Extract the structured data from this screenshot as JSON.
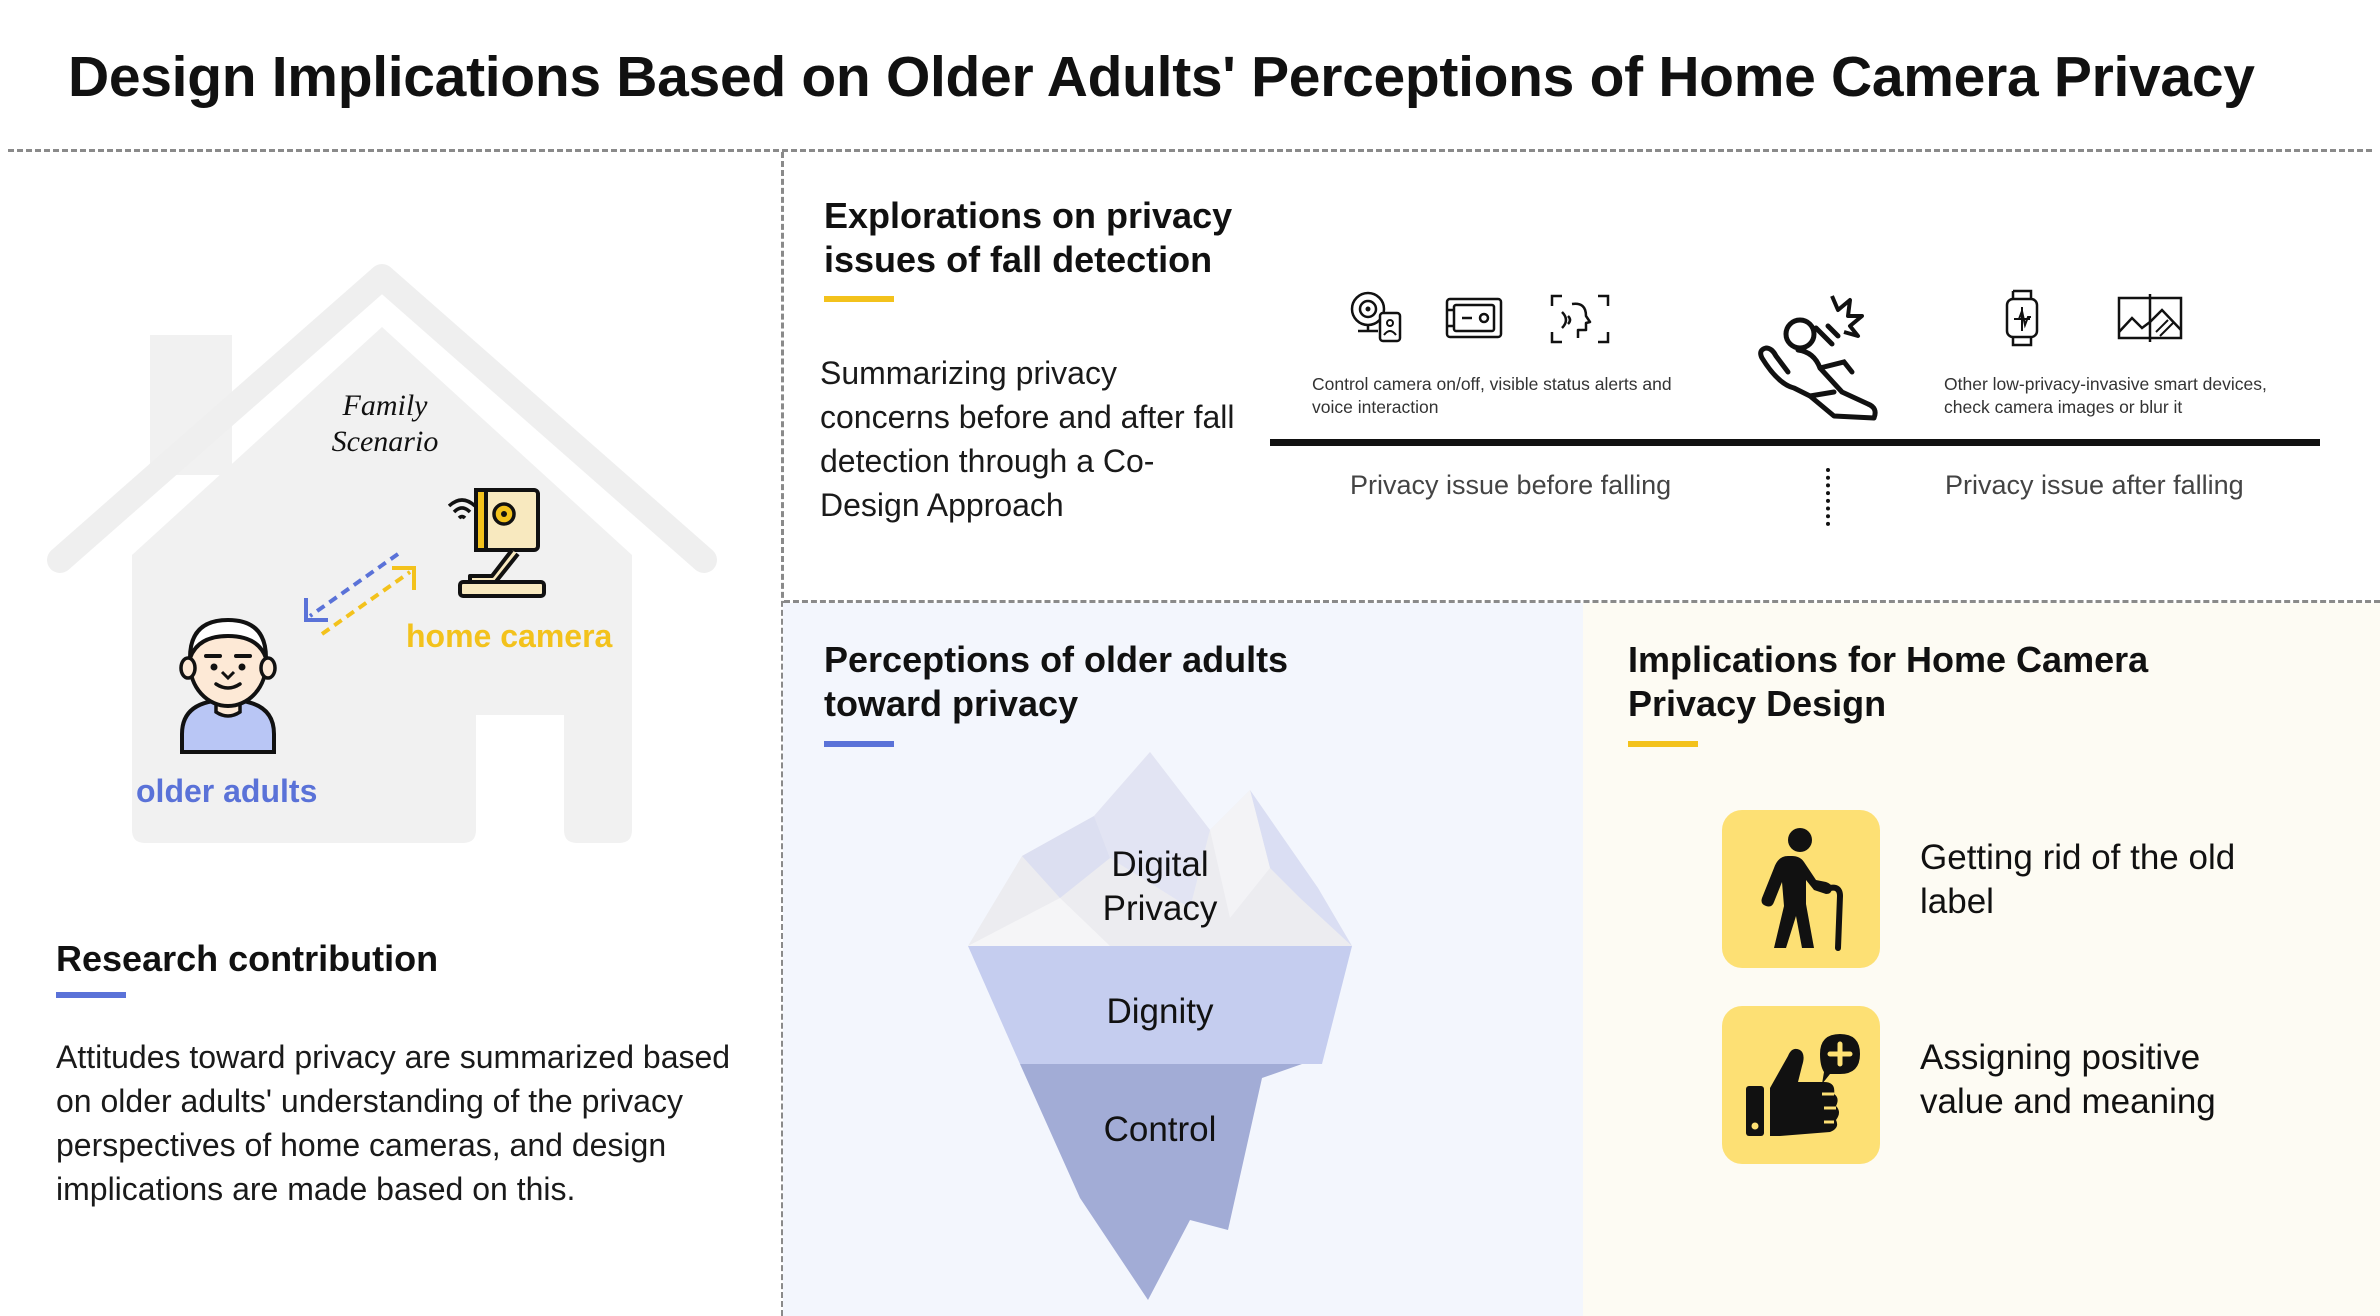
{
  "title": "Design Implications Based on Older Adults' Perceptions of Home Camera Privacy",
  "colors": {
    "accent_yellow": "#f3c21c",
    "accent_blue": "#5a72d8",
    "panel_blue": "#f3f6fd",
    "panel_cream": "#fdfbf3",
    "badge_yellow": "#fde074"
  },
  "scenario": {
    "family_scenario": "Family\nScenario",
    "older_adults": "older adults",
    "home_camera": "home camera"
  },
  "research": {
    "heading": "Research contribution",
    "body": "Attitudes toward privacy are summarized based on older adults' understanding of the privacy perspectives of home cameras, and design implications are made based on this."
  },
  "explorations": {
    "heading": "Explorations on privacy issues of fall detection",
    "body": "Summarizing privacy concerns before and after fall detection through a Co-Design Approach",
    "before_caption": "Control camera on/off, visible status alerts and voice interaction",
    "after_caption": "Other low-privacy-invasive smart devices, check camera images or blur it",
    "before_label": "Privacy issue before falling",
    "after_label": "Privacy issue after falling",
    "icons_before": [
      "webcam-icon",
      "camera-box-icon",
      "voice-icon"
    ],
    "icon_center": "falling-person-icon",
    "icons_after": [
      "smartwatch-icon",
      "image-icon"
    ]
  },
  "perceptions": {
    "heading": "Perceptions of older adults toward privacy",
    "layers": [
      "Digital\nPrivacy",
      "Dignity",
      "Control"
    ]
  },
  "implications": {
    "heading": "Implications for Home Camera Privacy Design",
    "items": [
      {
        "text": "Getting rid of the old label",
        "icon": "elderly-cane-icon"
      },
      {
        "text": "Assigning positive value and meaning",
        "icon": "thumbs-up-plus-icon"
      }
    ]
  }
}
